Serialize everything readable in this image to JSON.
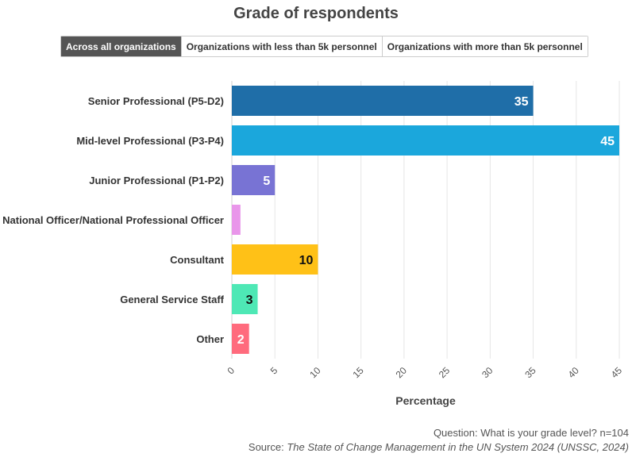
{
  "title": "Grade of respondents",
  "tabs": [
    {
      "label": "Across all organizations",
      "active": true
    },
    {
      "label": "Organizations with less than 5k personnel",
      "active": false
    },
    {
      "label": "Organizations with more than 5k personnel",
      "active": false
    }
  ],
  "chart_data": {
    "type": "bar",
    "orientation": "horizontal",
    "categories": [
      "Senior Professional (P5-D2)",
      "Mid-level Professional (P3-P4)",
      "Junior Professional (P1-P2)",
      "National Officer/National Professional Officer",
      "Consultant",
      "General Service Staff",
      "Other"
    ],
    "values": [
      35,
      45,
      5,
      1,
      10,
      3,
      2
    ],
    "data_labels": [
      "35",
      "45",
      "5",
      "",
      "10",
      "3",
      "2"
    ],
    "colors": [
      "#1f6ea8",
      "#1ba7dc",
      "#7873d4",
      "#e996ea",
      "#ffc117",
      "#4ee8b5",
      "#ff6b7d"
    ],
    "label_colors": [
      "#ffffff",
      "#ffffff",
      "#ffffff",
      "#ffffff",
      "#111111",
      "#111111",
      "#ffffff"
    ],
    "xlabel": "Percentage",
    "ylabel": "",
    "xlim": [
      0,
      45
    ],
    "xticks": [
      0,
      5,
      10,
      15,
      20,
      25,
      30,
      35,
      40,
      45
    ],
    "grid": true
  },
  "footer": {
    "question": "Question: What is your grade level? n=104",
    "source_prefix": "Source: ",
    "source_title": "The State of Change Management in the UN System 2024 (UNSSC, 2024)"
  }
}
